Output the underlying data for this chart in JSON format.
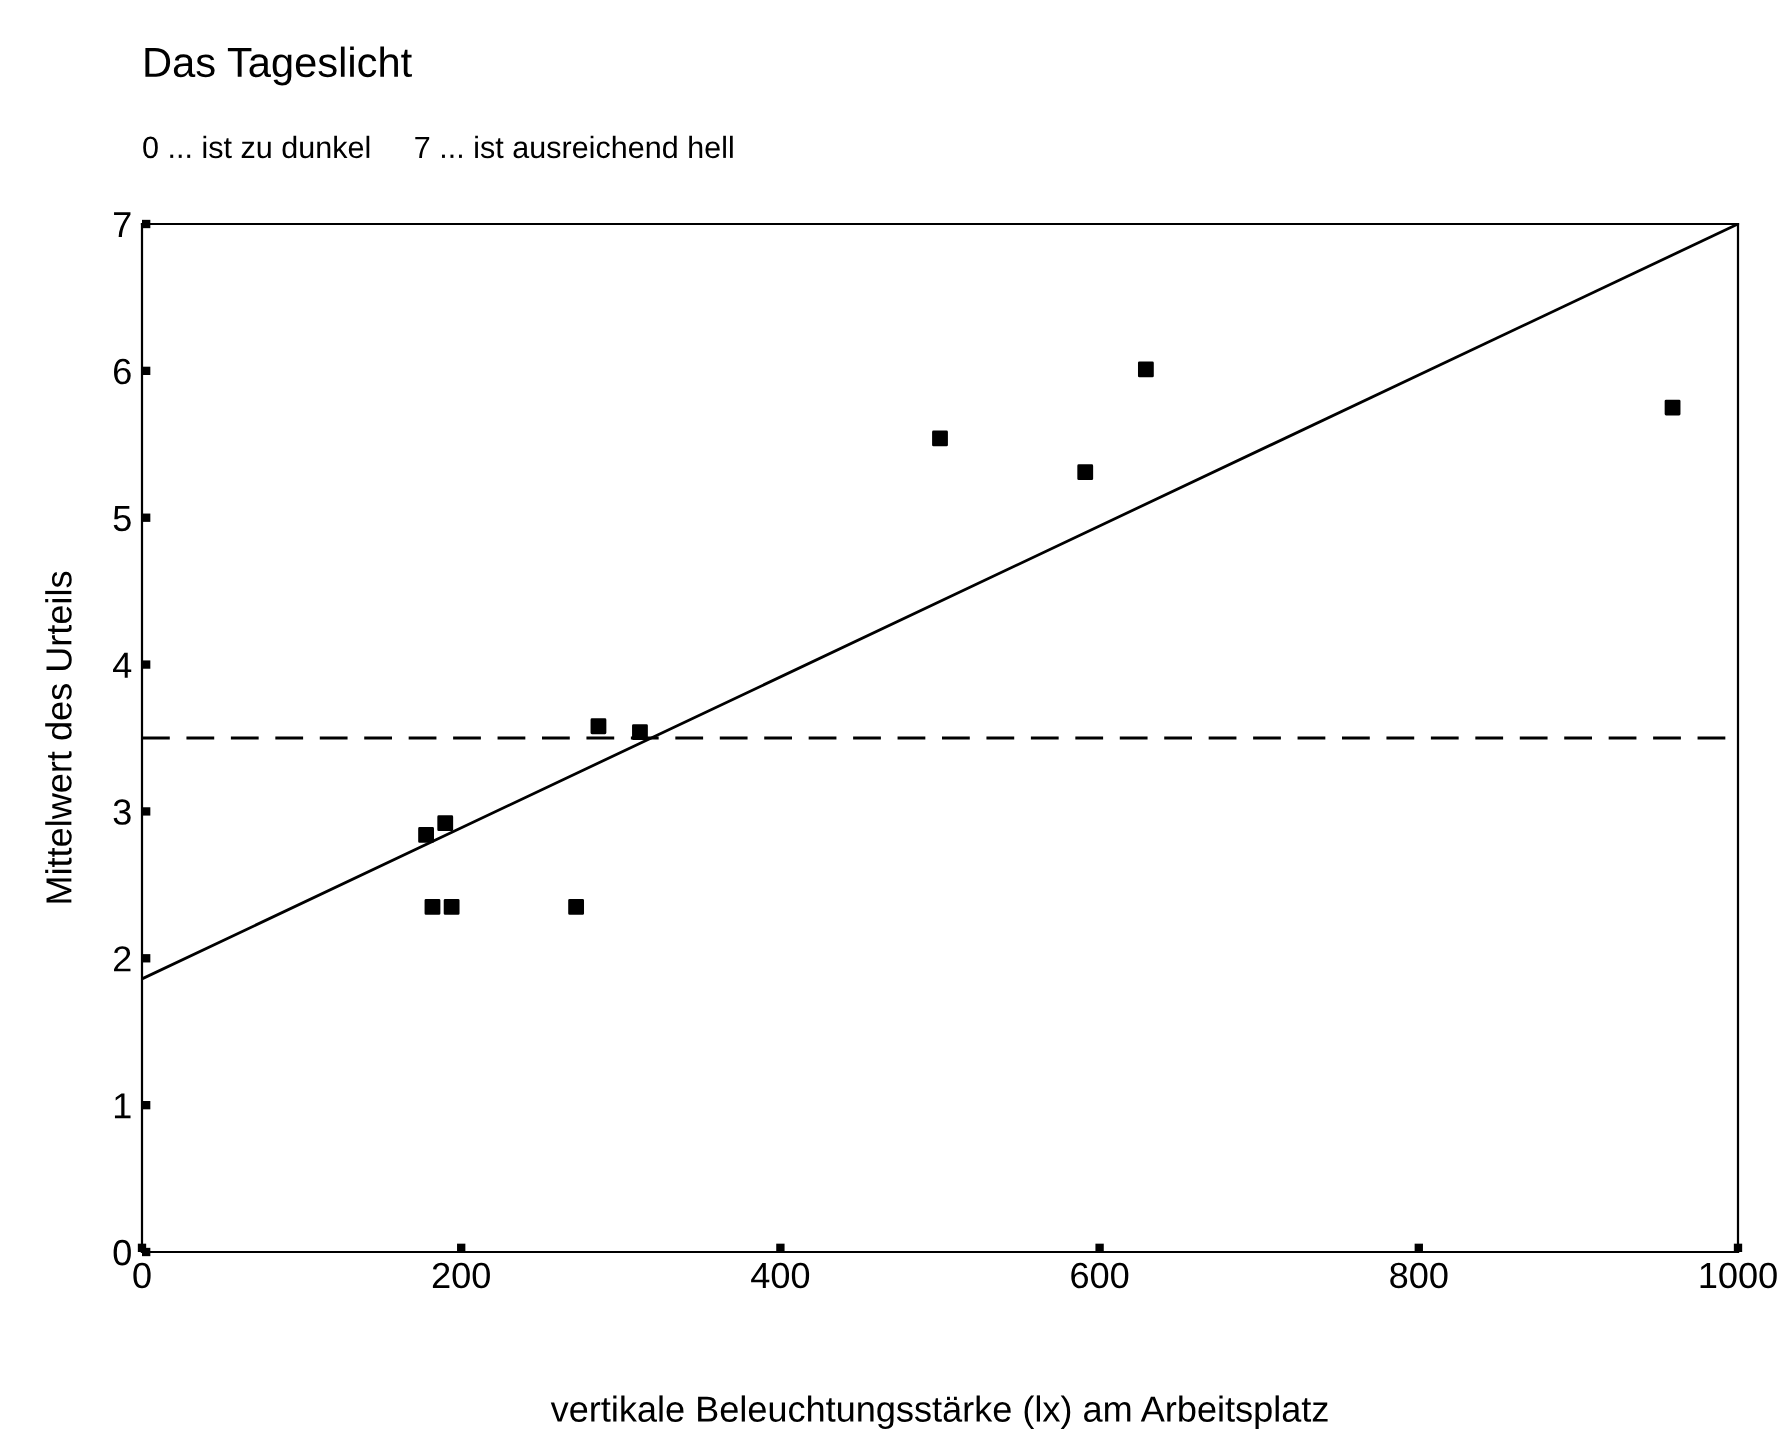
{
  "chart_data": {
    "type": "scatter",
    "title": "Das Tageslicht",
    "subtitle": "0 ... ist zu dunkel     7 ... ist ausreichend hell",
    "xlabel": "vertikale Beleuchtungsstärke (lx) am Arbeitsplatz",
    "ylabel": "Mittelwert des Urteils",
    "series": [
      {
        "color": "#000000",
        "marker": "square",
        "x": [
          178,
          182,
          190,
          194,
          272,
          286,
          312,
          500,
          591,
          629,
          959
        ],
        "values": [
          2.84,
          2.35,
          2.92,
          2.35,
          2.35,
          3.58,
          3.54,
          5.54,
          5.31,
          6.01,
          5.75
        ]
      },
      {
        "type": "line",
        "color": "#000000",
        "marker": "none",
        "line_style": "solid",
        "x": [
          0,
          1000
        ],
        "values": [
          1.86,
          7
        ]
      }
    ],
    "ref_lines": [
      {
        "axis": "y",
        "value": 3.5,
        "line_style": "dashed",
        "color": "#000000"
      }
    ],
    "xlim": [
      0,
      1000
    ],
    "ylim": [
      0,
      7
    ],
    "xticks": [
      0,
      200,
      400,
      600,
      800,
      1000
    ],
    "yticks": [
      0,
      1,
      2,
      3,
      4,
      5,
      6,
      7
    ],
    "grid": false,
    "legend": false
  }
}
